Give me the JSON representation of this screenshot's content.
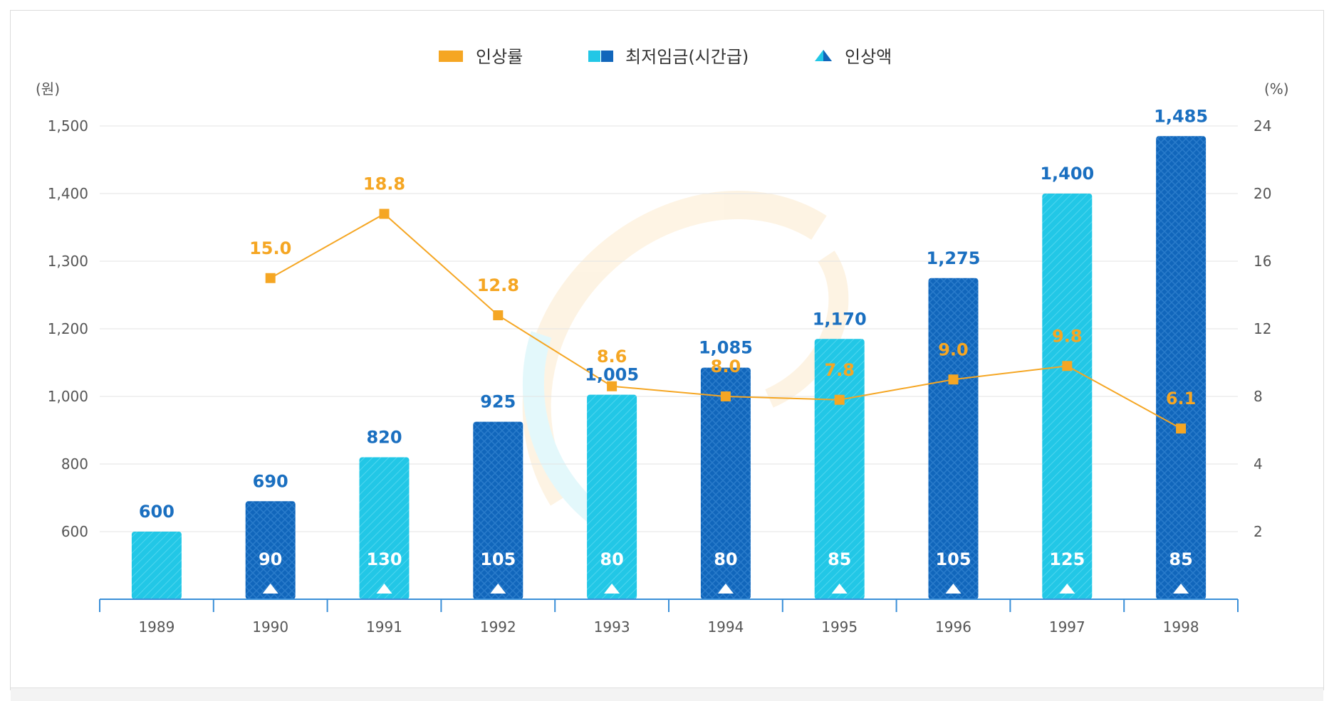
{
  "colors": {
    "bar_light": "#22c7e6",
    "bar_dark": "#1166bb",
    "rate_line": "#f5a623",
    "wage_label": "#1a6fc0",
    "axis": "#3a8fd8",
    "grid": "#e3e3e3"
  },
  "legend": {
    "rate": "인상률",
    "wage": "최저임금(시간급)",
    "increase": "인상액"
  },
  "axes": {
    "left_unit": "(원)",
    "right_unit": "(%)"
  },
  "chart_data": {
    "type": "bar",
    "categories": [
      "1989",
      "1990",
      "1991",
      "1992",
      "1993",
      "1994",
      "1995",
      "1996",
      "1997",
      "1998"
    ],
    "series": [
      {
        "name": "최저임금(시간급)",
        "values": [
          600,
          690,
          820,
          925,
          1005,
          1085,
          1170,
          1275,
          1400,
          1485
        ],
        "labels": [
          "600",
          "690",
          "820",
          "925",
          "1,005",
          "1,085",
          "1,170",
          "1,275",
          "1,400",
          "1,485"
        ],
        "axis": "left"
      },
      {
        "name": "인상액",
        "values": [
          null,
          90,
          130,
          105,
          80,
          80,
          85,
          105,
          125,
          85
        ],
        "labels": [
          "",
          "90",
          "130",
          "105",
          "80",
          "80",
          "85",
          "105",
          "125",
          "85"
        ],
        "marker": "triangle"
      },
      {
        "name": "인상률",
        "type": "line",
        "values": [
          null,
          15.0,
          18.8,
          12.8,
          8.6,
          8.0,
          7.8,
          9.0,
          9.8,
          6.1
        ],
        "labels": [
          "",
          "15.0",
          "18.8",
          "12.8",
          "8.6",
          "8.0",
          "7.8",
          "9.0",
          "9.8",
          "6.1"
        ],
        "axis": "right"
      }
    ],
    "left_axis": {
      "ticks": [
        600,
        800,
        1000,
        1200,
        1300,
        1400,
        1500
      ],
      "tick_labels": [
        "600",
        "800",
        "1,000",
        "1,200",
        "1,300",
        "1,400",
        "1,500"
      ]
    },
    "right_axis": {
      "ticks": [
        2,
        4,
        8,
        12,
        16,
        20,
        24
      ],
      "tick_labels": [
        "2",
        "4",
        "8",
        "12",
        "16",
        "20",
        "24"
      ]
    },
    "bar_styles": [
      "light",
      "dark",
      "light",
      "dark",
      "light",
      "dark",
      "light",
      "dark",
      "light",
      "dark"
    ],
    "legend_position": "top-center",
    "grid": true
  }
}
